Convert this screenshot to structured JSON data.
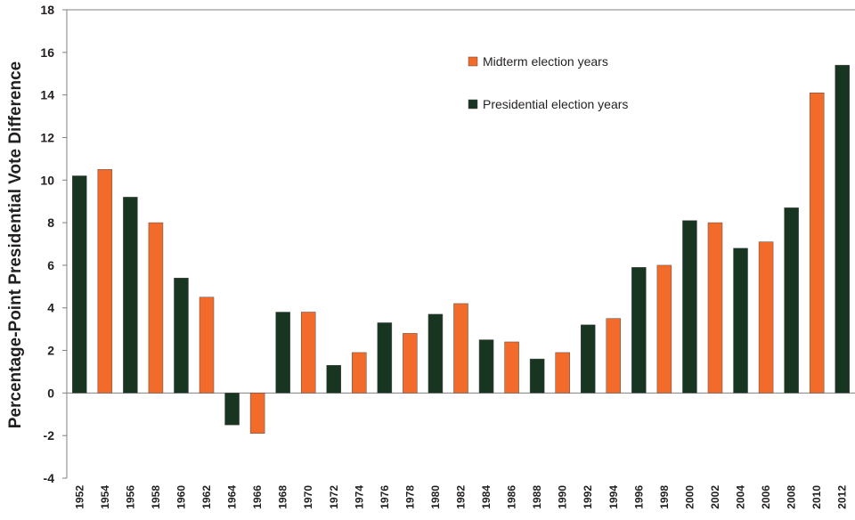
{
  "chart_data": {
    "type": "bar",
    "title": "",
    "xlabel": "",
    "ylabel": "Percentage-Point Presidential Vote Difference",
    "ylim": [
      -4,
      18
    ],
    "yticks": [
      -4,
      -2,
      0,
      2,
      4,
      6,
      8,
      10,
      12,
      14,
      16,
      18
    ],
    "categories": [
      "1952",
      "1954",
      "1956",
      "1958",
      "1960",
      "1962",
      "1964",
      "1966",
      "1968",
      "1970",
      "1972",
      "1974",
      "1976",
      "1978",
      "1980",
      "1982",
      "1984",
      "1986",
      "1988",
      "1990",
      "1992",
      "1994",
      "1996",
      "1998",
      "2000",
      "2002",
      "2004",
      "2006",
      "2008",
      "2010",
      "2012"
    ],
    "values": [
      10.2,
      10.5,
      9.2,
      8.0,
      5.4,
      4.5,
      -1.5,
      -1.9,
      3.8,
      3.8,
      1.3,
      1.9,
      3.3,
      2.8,
      3.7,
      4.2,
      2.5,
      2.4,
      1.6,
      1.9,
      3.2,
      3.5,
      5.9,
      6.0,
      8.1,
      8.0,
      6.8,
      7.1,
      8.7,
      14.1,
      15.4
    ],
    "bar_types": [
      "presidential",
      "midterm",
      "presidential",
      "midterm",
      "presidential",
      "midterm",
      "presidential",
      "midterm",
      "presidential",
      "midterm",
      "presidential",
      "midterm",
      "presidential",
      "midterm",
      "presidential",
      "midterm",
      "presidential",
      "midterm",
      "presidential",
      "midterm",
      "presidential",
      "midterm",
      "presidential",
      "midterm",
      "presidential",
      "midterm",
      "presidential",
      "midterm",
      "presidential",
      "midterm",
      "presidential"
    ],
    "series": [
      {
        "key": "midterm",
        "name": "Midterm election years",
        "color": "#f26b2a"
      },
      {
        "key": "presidential",
        "name": "Presidential election years",
        "color": "#173520"
      }
    ],
    "legend_position": "top-right",
    "grid": false
  }
}
